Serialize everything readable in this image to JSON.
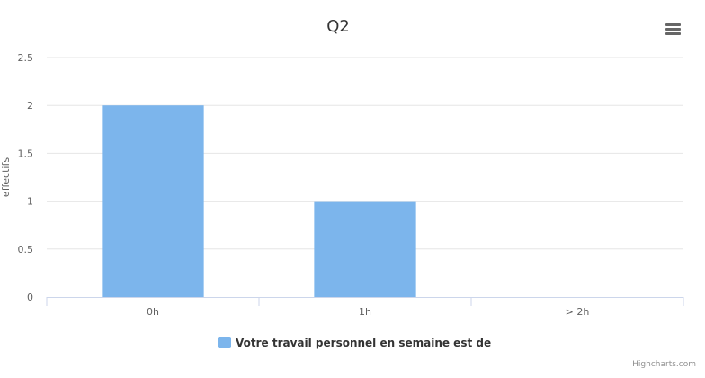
{
  "chart_data": {
    "type": "bar",
    "title": "Q2",
    "xlabel": "",
    "ylabel": "effectifs",
    "categories": [
      "0h",
      "1h",
      "> 2h"
    ],
    "series": [
      {
        "name": "Votre travail personnel en semaine est de",
        "values": [
          2,
          1,
          0
        ],
        "color": "#7cb5ec"
      }
    ],
    "ylim": [
      0,
      2.5
    ],
    "yticks": [
      "0",
      "0.5",
      "1",
      "1.5",
      "2",
      "2.5"
    ],
    "grid": true,
    "legend": "bottom-center"
  },
  "menu": {
    "icon": "hamburger-menu-icon"
  },
  "credits": "Highcharts.com",
  "colors": {
    "bar": "#7cb5ec",
    "grid": "#e6e6e6",
    "axis": "#ccd6eb"
  }
}
